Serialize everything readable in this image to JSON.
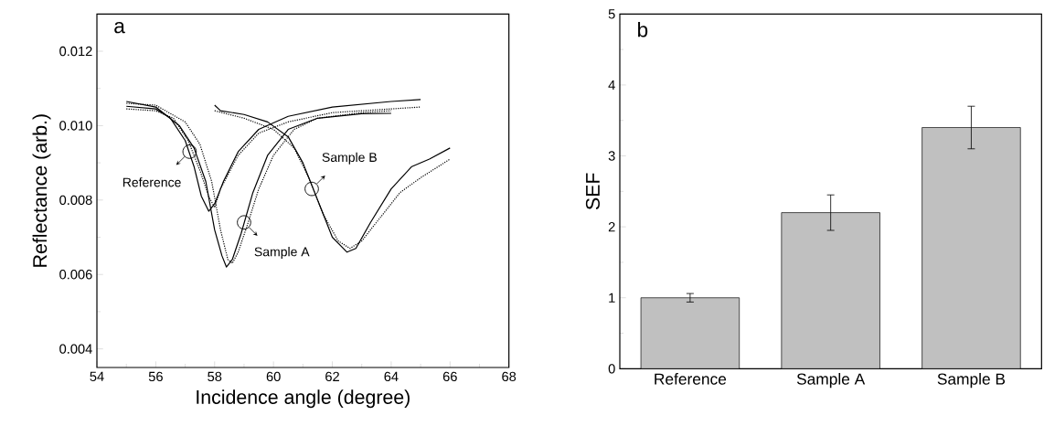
{
  "chart_data": [
    {
      "type": "line",
      "xlabel": "Incidence angle (degree)",
      "ylabel": "Reflectance (arb.)",
      "xlim": [
        54,
        68
      ],
      "ylim": [
        0.0035,
        0.013
      ],
      "xticks": [
        54,
        56,
        58,
        60,
        62,
        64,
        66,
        68
      ],
      "yticks": [
        0.004,
        0.006,
        0.008,
        {
          "value": 0.01,
          "label": "0.010"
        },
        0.012
      ],
      "annotations": [
        "a",
        {
          "text": "Reference",
          "x": 57.15,
          "y": 0.0093
        },
        {
          "text": "Sample A",
          "x": 59.0,
          "y": 0.0074
        },
        {
          "text": "Sample B",
          "x": 61.3,
          "y": 0.0083
        }
      ],
      "series": [
        {
          "color": "#000000",
          "line_style": "solid",
          "x": [
            55,
            56,
            56.5,
            57,
            57.3,
            57.55,
            57.8,
            58.0,
            58.3,
            58.8,
            59.5,
            60.5,
            62,
            64,
            65
          ],
          "values": [
            0.01052,
            0.01045,
            0.0102,
            0.0096,
            0.0089,
            0.0081,
            0.0077,
            0.0079,
            0.0085,
            0.0093,
            0.0099,
            0.01025,
            0.0105,
            0.01065,
            0.0107
          ]
        },
        {
          "color": "#000000",
          "line_style": "dotted",
          "x": [
            55,
            56,
            56.6,
            57.1,
            57.5,
            57.8,
            58.0,
            58.2,
            58.8,
            59.5,
            60.5,
            62,
            64,
            65
          ],
          "values": [
            0.01045,
            0.0104,
            0.0102,
            0.0096,
            0.0088,
            0.0081,
            0.0078,
            0.0083,
            0.0092,
            0.0098,
            0.0101,
            0.01035,
            0.01045,
            0.0105
          ]
        },
        {
          "color": "#000000",
          "line_style": "solid",
          "x": [
            55,
            56,
            56.8,
            57.3,
            57.7,
            58.0,
            58.25,
            58.4,
            58.6,
            58.9,
            59.3,
            59.8,
            60.5,
            61.5,
            63,
            64
          ],
          "values": [
            0.01065,
            0.0105,
            0.01,
            0.0094,
            0.0085,
            0.0072,
            0.0065,
            0.0062,
            0.0064,
            0.0071,
            0.0082,
            0.0092,
            0.0099,
            0.0102,
            0.01032,
            0.01033
          ]
        },
        {
          "color": "#000000",
          "line_style": "dotted",
          "x": [
            55,
            56,
            57,
            57.5,
            57.9,
            58.2,
            58.45,
            58.6,
            58.8,
            59.1,
            59.5,
            60,
            60.7,
            61.5,
            63,
            64
          ],
          "values": [
            0.0106,
            0.01055,
            0.0101,
            0.0095,
            0.0085,
            0.0072,
            0.0064,
            0.0063,
            0.0066,
            0.0073,
            0.0083,
            0.0092,
            0.0099,
            0.0102,
            0.01035,
            0.0104
          ]
        },
        {
          "color": "#000000",
          "line_style": "solid",
          "x": [
            58,
            58.2,
            59,
            59.8,
            60.5,
            61,
            61.5,
            62,
            62.5,
            62.8,
            63.3,
            64,
            64.7,
            65.3,
            66
          ],
          "values": [
            0.01055,
            0.0104,
            0.0103,
            0.0101,
            0.0097,
            0.009,
            0.008,
            0.007,
            0.0066,
            0.0067,
            0.0074,
            0.0083,
            0.0089,
            0.0091,
            0.0094
          ]
        },
        {
          "color": "#000000",
          "line_style": "dotted",
          "x": [
            58,
            59,
            60,
            60.7,
            61.2,
            61.7,
            62.2,
            62.6,
            63,
            63.6,
            64.3,
            65,
            66
          ],
          "values": [
            0.0104,
            0.0102,
            0.0099,
            0.0094,
            0.0086,
            0.0076,
            0.0069,
            0.0067,
            0.0069,
            0.0075,
            0.0082,
            0.0086,
            0.0091
          ]
        }
      ]
    },
    {
      "type": "bar",
      "ylabel": "SEF",
      "categories": [
        "Reference",
        "Sample A",
        "Sample B"
      ],
      "values": [
        1.0,
        2.2,
        3.4
      ],
      "errors": [
        0.06,
        0.25,
        0.3
      ],
      "color": "#c0c0c0",
      "ylim": [
        0,
        5
      ],
      "yticks": [
        0,
        1,
        2,
        3,
        4,
        5
      ],
      "annotations": [
        "b"
      ]
    }
  ]
}
